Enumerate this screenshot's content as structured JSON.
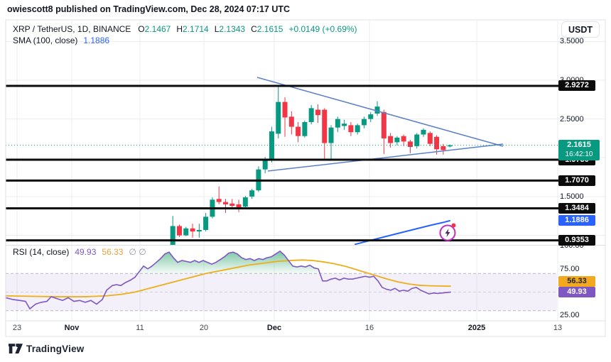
{
  "byline": "owiescott8 published on TradingView.com, Dec 28, 2024 07:17 UTC",
  "toolbar": {
    "currency_button": "USDT"
  },
  "legend": {
    "symbol": "XRP / TetherUS, 1D, BINANCE",
    "ohlc": [
      {
        "k": "O",
        "v": "2.1467"
      },
      {
        "k": "H",
        "v": "2.1714"
      },
      {
        "k": "L",
        "v": "2.1343"
      },
      {
        "k": "C",
        "v": "2.1615"
      }
    ],
    "change": "+0.0149 (+0.69%)",
    "sma_label": "SMA (100, close)",
    "sma_value": "1.1886"
  },
  "rsi_legend": {
    "label": "RSI (14, close)",
    "value": "49.93",
    "ma_value": "56.33",
    "extra": "∅ ∅"
  },
  "logo_text": "TradingView",
  "colors": {
    "up": "#089981",
    "down": "#f23645",
    "grid": "#ebedf1",
    "frame": "#dde0e6",
    "trendline": "#5b80c9",
    "sma": "#2962ff",
    "rsi_line": "#7e57c2",
    "rsi_ma": "#edae18",
    "level_line": "#0b0b0b",
    "current_price": "#089981",
    "band_fill": "rgba(126,87,194,0.09)",
    "overbought_fill": "#3cab76",
    "flash": "#c02cc0",
    "alert_dot": "#f23645"
  },
  "chart_data": {
    "type": "candlestick",
    "symbol": "XRP/USDT",
    "interval": "1D",
    "exchange": "BINANCE",
    "last": {
      "open": 2.1467,
      "high": 2.1714,
      "low": 2.1343,
      "close": 2.1615,
      "change": "+0.0149 (+0.69%)"
    },
    "current_price_label": "2.1615",
    "countdown": "16:42:10",
    "candles": [
      [
        "2024-11-16",
        0.87,
        1.25,
        0.86,
        1.12
      ],
      [
        "2024-11-17",
        1.12,
        1.14,
        0.98,
        1.0
      ],
      [
        "2024-11-18",
        1.0,
        1.11,
        0.99,
        1.09
      ],
      [
        "2024-11-19",
        1.09,
        1.15,
        0.97,
        1.05
      ],
      [
        "2024-11-20",
        1.05,
        1.15,
        0.97,
        1.07
      ],
      [
        "2024-11-21",
        1.07,
        1.29,
        1.05,
        1.24
      ],
      [
        "2024-11-22",
        1.24,
        1.49,
        1.22,
        1.46
      ],
      [
        "2024-11-23",
        1.47,
        1.63,
        1.4,
        1.43
      ],
      [
        "2024-11-24",
        1.43,
        1.47,
        1.29,
        1.4
      ],
      [
        "2024-11-25",
        1.41,
        1.47,
        1.36,
        1.38
      ],
      [
        "2024-11-26",
        1.4,
        1.46,
        1.3,
        1.36
      ],
      [
        "2024-11-27",
        1.37,
        1.51,
        1.35,
        1.49
      ],
      [
        "2024-11-28",
        1.5,
        1.6,
        1.47,
        1.58
      ],
      [
        "2024-11-29",
        1.58,
        1.89,
        1.56,
        1.85
      ],
      [
        "2024-11-30",
        1.85,
        2.01,
        1.8,
        1.97
      ],
      [
        "2024-12-01",
        1.97,
        2.4,
        1.94,
        2.34
      ],
      [
        "2024-12-02",
        2.31,
        2.92,
        2.25,
        2.72
      ],
      [
        "2024-12-03",
        2.72,
        2.78,
        2.27,
        2.52
      ],
      [
        "2024-12-04",
        2.53,
        2.6,
        2.3,
        2.4
      ],
      [
        "2024-12-05",
        2.4,
        2.46,
        2.2,
        2.28
      ],
      [
        "2024-12-06",
        2.28,
        2.48,
        2.26,
        2.46
      ],
      [
        "2024-12-07",
        2.46,
        2.68,
        2.43,
        2.64
      ],
      [
        "2024-12-08",
        2.62,
        2.69,
        2.45,
        2.55
      ],
      [
        "2024-12-09",
        2.62,
        2.64,
        1.99,
        2.19
      ],
      [
        "2024-12-10",
        2.19,
        2.42,
        1.97,
        2.39
      ],
      [
        "2024-12-11",
        2.39,
        2.53,
        2.33,
        2.5
      ],
      [
        "2024-12-12",
        2.41,
        2.49,
        2.36,
        2.44
      ],
      [
        "2024-12-13",
        2.42,
        2.46,
        2.28,
        2.33
      ],
      [
        "2024-12-14",
        2.33,
        2.44,
        2.3,
        2.42
      ],
      [
        "2024-12-15",
        2.42,
        2.53,
        2.38,
        2.5
      ],
      [
        "2024-12-16",
        2.5,
        2.59,
        2.46,
        2.56
      ],
      [
        "2024-12-17",
        2.57,
        2.73,
        2.54,
        2.66
      ],
      [
        "2024-12-18",
        2.59,
        2.62,
        2.05,
        2.25
      ],
      [
        "2024-12-19",
        2.28,
        2.32,
        2.13,
        2.19
      ],
      [
        "2024-12-20",
        2.2,
        2.28,
        2.16,
        2.26
      ],
      [
        "2024-12-21",
        2.28,
        2.3,
        2.15,
        2.21
      ],
      [
        "2024-12-22",
        2.21,
        2.23,
        2.06,
        2.14
      ],
      [
        "2024-12-23",
        2.15,
        2.32,
        2.12,
        2.3
      ],
      [
        "2024-12-24",
        2.3,
        2.38,
        2.27,
        2.36
      ],
      [
        "2024-12-25",
        2.32,
        2.34,
        2.15,
        2.18
      ],
      [
        "2024-12-26",
        2.27,
        2.29,
        2.04,
        2.11
      ],
      [
        "2024-12-27",
        2.15,
        2.18,
        2.04,
        2.1
      ],
      [
        "2024-12-28",
        2.1467,
        2.1714,
        2.1343,
        2.1615
      ]
    ],
    "levels": [
      "2.9272",
      "1.9750",
      "1.7070",
      "1.3484",
      "0.9353"
    ],
    "y_ticks": [
      "3.5000",
      "3.0000",
      "2.5000",
      "1.5000"
    ],
    "grid_prices": [
      3.5,
      3.0,
      2.5,
      2.0,
      1.5,
      1.0
    ],
    "x_ticks": [
      {
        "label": "23",
        "x": 24,
        "bold": false
      },
      {
        "label": "Nov",
        "x": 101,
        "bold": true
      },
      {
        "label": "11",
        "x": 197,
        "bold": false
      },
      {
        "label": "20",
        "x": 287,
        "bold": false
      },
      {
        "label": "Dec",
        "x": 386,
        "bold": true
      },
      {
        "label": "16",
        "x": 520,
        "bold": false
      },
      {
        "label": "2025",
        "x": 671,
        "bold": true
      },
      {
        "label": "13",
        "x": 785,
        "bold": false
      }
    ],
    "sma": {
      "period": 100,
      "value_label": "1.1886",
      "points": [
        [
          500,
          0.885
        ],
        [
          530,
          0.955
        ],
        [
          560,
          1.025
        ],
        [
          585,
          1.082
        ],
        [
          605,
          1.128
        ],
        [
          622,
          1.163
        ],
        [
          633,
          1.1886
        ]
      ]
    },
    "trendlines": {
      "upper": [
        [
          362,
          109
        ],
        [
          708,
          206
        ]
      ],
      "lower": [
        [
          377,
          241
        ],
        [
          708,
          203
        ]
      ]
    },
    "flash_icon": {
      "x": 630,
      "y": 328
    },
    "rsi": {
      "period": 14,
      "value": "49.93",
      "ma_value": "56.33",
      "bands": [
        70,
        50,
        30
      ],
      "y_ticks": [
        "100.00",
        "75.00",
        "25.00"
      ],
      "points": [
        [
          8,
          44
        ],
        [
          18,
          42
        ],
        [
          28,
          41
        ],
        [
          36,
          40
        ],
        [
          42,
          32
        ],
        [
          50,
          37
        ],
        [
          58,
          39
        ],
        [
          66,
          40
        ],
        [
          72,
          45
        ],
        [
          80,
          43
        ],
        [
          88,
          41
        ],
        [
          96,
          44
        ],
        [
          104,
          40
        ],
        [
          112,
          41
        ],
        [
          120,
          39
        ],
        [
          128,
          41
        ],
        [
          136,
          37
        ],
        [
          144,
          42
        ],
        [
          150,
          52
        ],
        [
          158,
          57
        ],
        [
          164,
          58
        ],
        [
          170,
          57
        ],
        [
          176,
          60
        ],
        [
          184,
          63
        ],
        [
          190,
          66
        ],
        [
          196,
          72
        ],
        [
          202,
          78
        ],
        [
          208,
          75
        ],
        [
          214,
          78
        ],
        [
          220,
          82
        ],
        [
          226,
          86
        ],
        [
          232,
          91
        ],
        [
          238,
          93
        ],
        [
          244,
          87
        ],
        [
          250,
          82
        ],
        [
          256,
          84
        ],
        [
          262,
          83
        ],
        [
          268,
          82
        ],
        [
          274,
          84
        ],
        [
          280,
          82
        ],
        [
          286,
          84
        ],
        [
          292,
          82
        ],
        [
          298,
          80
        ],
        [
          304,
          82
        ],
        [
          310,
          85
        ],
        [
          316,
          88
        ],
        [
          322,
          92
        ],
        [
          328,
          93
        ],
        [
          334,
          91
        ],
        [
          340,
          87
        ],
        [
          346,
          85
        ],
        [
          352,
          86
        ],
        [
          358,
          84
        ],
        [
          364,
          86
        ],
        [
          370,
          85
        ],
        [
          376,
          87
        ],
        [
          382,
          88
        ],
        [
          388,
          91
        ],
        [
          394,
          94
        ],
        [
          400,
          90
        ],
        [
          406,
          84
        ],
        [
          412,
          78
        ],
        [
          418,
          77
        ],
        [
          424,
          78
        ],
        [
          430,
          77
        ],
        [
          436,
          79
        ],
        [
          442,
          76
        ],
        [
          448,
          75
        ],
        [
          454,
          62
        ],
        [
          460,
          62
        ],
        [
          466,
          64
        ],
        [
          472,
          65
        ],
        [
          478,
          63
        ],
        [
          484,
          65
        ],
        [
          490,
          64
        ],
        [
          496,
          64
        ],
        [
          502,
          65
        ],
        [
          508,
          66
        ],
        [
          514,
          67
        ],
        [
          520,
          66
        ],
        [
          526,
          67
        ],
        [
          532,
          62
        ],
        [
          538,
          55
        ],
        [
          544,
          53
        ],
        [
          550,
          52
        ],
        [
          556,
          54
        ],
        [
          562,
          51
        ],
        [
          568,
          52
        ],
        [
          574,
          51
        ],
        [
          580,
          54
        ],
        [
          586,
          55
        ],
        [
          592,
          52
        ],
        [
          598,
          50
        ],
        [
          604,
          48
        ],
        [
          610,
          49
        ],
        [
          616,
          48.5
        ],
        [
          622,
          49
        ],
        [
          628,
          49.5
        ],
        [
          634,
          49.93
        ]
      ],
      "ma_points": [
        [
          8,
          46
        ],
        [
          40,
          45.5
        ],
        [
          80,
          45
        ],
        [
          120,
          45
        ],
        [
          150,
          46
        ],
        [
          170,
          47.5
        ],
        [
          190,
          50
        ],
        [
          210,
          54
        ],
        [
          230,
          58
        ],
        [
          250,
          62
        ],
        [
          270,
          66
        ],
        [
          290,
          70
        ],
        [
          310,
          73
        ],
        [
          330,
          76
        ],
        [
          350,
          79
        ],
        [
          370,
          81
        ],
        [
          390,
          83
        ],
        [
          410,
          84
        ],
        [
          425,
          84.5
        ],
        [
          440,
          84
        ],
        [
          455,
          82.5
        ],
        [
          470,
          80.5
        ],
        [
          485,
          78
        ],
        [
          500,
          74.5
        ],
        [
          515,
          71
        ],
        [
          530,
          67.5
        ],
        [
          545,
          64
        ],
        [
          560,
          61
        ],
        [
          575,
          58.8
        ],
        [
          590,
          57.3
        ],
        [
          605,
          56.8
        ],
        [
          620,
          56.5
        ],
        [
          634,
          56.33
        ]
      ]
    }
  }
}
